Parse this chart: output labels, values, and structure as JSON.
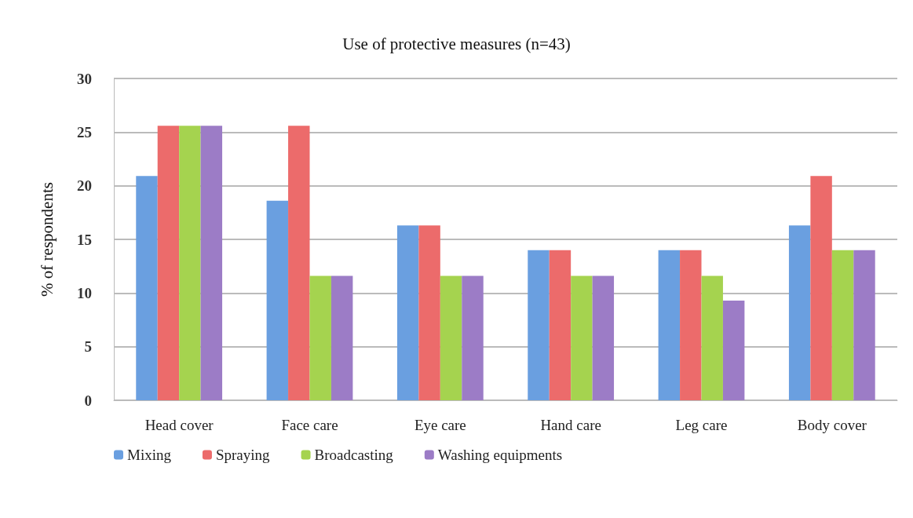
{
  "chart_data": {
    "type": "bar",
    "title": "Use of protective measures (n=43)",
    "ylabel": "% of respondents",
    "categories": [
      "Head cover",
      "Face care",
      "Eye care",
      "Hand care",
      "Leg care",
      "Body cover"
    ],
    "series": [
      {
        "name": "Mixing",
        "color": "#6a9fe0",
        "values": [
          20.9,
          18.6,
          16.3,
          14.0,
          14.0,
          16.3
        ]
      },
      {
        "name": "Spraying",
        "color": "#ec6b6b",
        "values": [
          25.6,
          25.6,
          16.3,
          14.0,
          14.0,
          20.9
        ]
      },
      {
        "name": "Broadcasting",
        "color": "#a5d34f",
        "values": [
          25.6,
          11.6,
          11.6,
          11.6,
          11.6,
          14.0
        ]
      },
      {
        "name": "Washing equipments",
        "color": "#9c7cc6",
        "values": [
          25.6,
          11.6,
          11.6,
          11.6,
          9.3,
          14.0
        ]
      }
    ],
    "ylim": [
      0,
      30
    ],
    "yticks": [
      0,
      5,
      10,
      15,
      20,
      25,
      30
    ],
    "grid": "y",
    "legend": "bottom"
  }
}
